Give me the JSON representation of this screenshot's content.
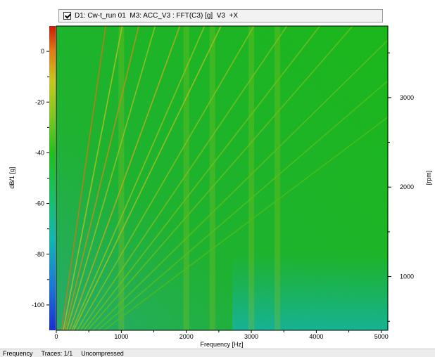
{
  "legend": {
    "checked": true,
    "text": "D1: Cw-t_run 01  M3: ACC_V3 : FFT(C3) [g]  V3  +X"
  },
  "status": {
    "mode": "Frequency",
    "traces": "Traces: 1/1",
    "compression": "Uncompressed"
  },
  "colors": {
    "low": "#1a2fcf",
    "mid_low": "#10b8b0",
    "mid": "#1ec01e",
    "mid_high": "#c8c81e",
    "high": "#cc1a0a"
  },
  "chart_data": {
    "type": "heatmap",
    "title": "",
    "xlabel": "Frequency [Hz]",
    "ylabel_left": "dB/1 [g]",
    "ylabel_right": "[rpm]",
    "xlim": [
      0,
      5100
    ],
    "x_ticks": [
      0,
      1000,
      2000,
      3000,
      4000,
      5000
    ],
    "x_tick_labels": [
      "0",
      "1000",
      "2000",
      "3000",
      "4000",
      "5000"
    ],
    "colorbar_range": [
      -110,
      10
    ],
    "colorbar_ticks": [
      0,
      -20,
      -40,
      -60,
      -80,
      -100
    ],
    "colorbar_tick_labels": [
      "0",
      "-20",
      "-40",
      "-60",
      "-80",
      "-100"
    ],
    "rpm_range": [
      400,
      3800
    ],
    "rpm_ticks": [
      1000,
      2000,
      3000
    ],
    "rpm_tick_labels": [
      "1000",
      "2000",
      "3000"
    ],
    "order_lines": [
      {
        "order": 12,
        "level_db": -5
      },
      {
        "order": 16,
        "level_db": -15
      },
      {
        "order": 20,
        "level_db": -8
      },
      {
        "order": 24,
        "level_db": -20
      },
      {
        "order": 30,
        "level_db": -12
      },
      {
        "order": 36,
        "level_db": -22
      },
      {
        "order": 40,
        "level_db": -18
      },
      {
        "order": 48,
        "level_db": -25
      },
      {
        "order": 56,
        "level_db": -28
      },
      {
        "order": 64,
        "level_db": -30
      },
      {
        "order": 72,
        "level_db": -32
      },
      {
        "order": 84,
        "level_db": -34
      },
      {
        "order": 96,
        "level_db": -36
      },
      {
        "order": 110,
        "level_db": -38
      }
    ],
    "resonance_bands_hz": [
      1000,
      2000,
      2400,
      3000,
      3400
    ],
    "background_level_db": -48
  }
}
